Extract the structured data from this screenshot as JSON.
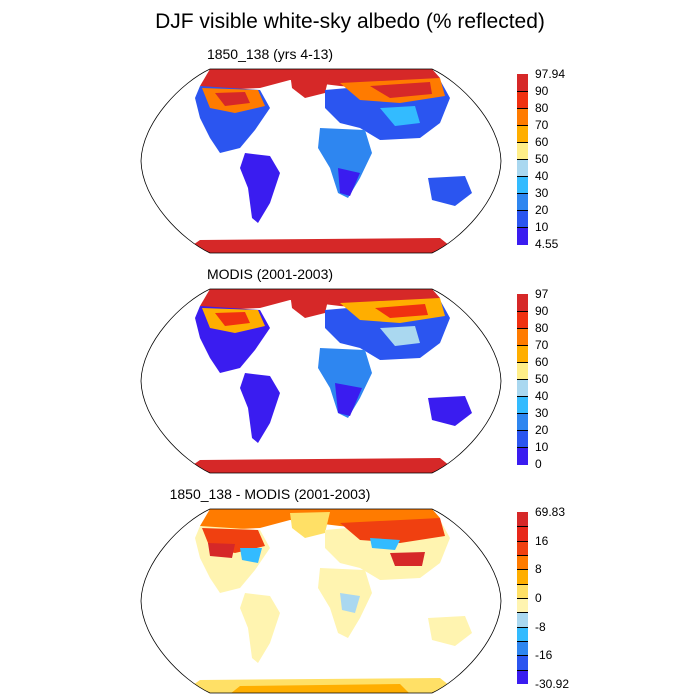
{
  "title": "DJF visible white-sky albedo (% reflected)",
  "panels": [
    {
      "title": "1850_138 (yrs 4-13)",
      "colorbar": {
        "labels": [
          "97.94",
          "90",
          "80",
          "70",
          "60",
          "50",
          "40",
          "30",
          "20",
          "10",
          "4.55"
        ],
        "colors": [
          "#d62828",
          "#f03010",
          "#ff7b00",
          "#ffae00",
          "#ffee88",
          "#aad8f0",
          "#33bbff",
          "#2e86f0",
          "#2b55f0",
          "#3a1cf0"
        ]
      }
    },
    {
      "title": "MODIS (2001-2003)",
      "colorbar": {
        "labels": [
          "97",
          "90",
          "80",
          "70",
          "60",
          "50",
          "40",
          "30",
          "20",
          "10",
          "0"
        ],
        "colors": [
          "#d62828",
          "#f03010",
          "#ff7b00",
          "#ffae00",
          "#ffee88",
          "#aad8f0",
          "#33bbff",
          "#2e86f0",
          "#2b55f0",
          "#3a1cf0"
        ]
      }
    },
    {
      "title": "1850_138 - MODIS (2001-2003)",
      "colorbar": {
        "labels": [
          "69.83",
          "16",
          "8",
          "0",
          "-8",
          "-16",
          "-30.92"
        ],
        "colors": [
          "#d62828",
          "#e8281a",
          "#f04010",
          "#ff7b00",
          "#ffae00",
          "#ffe066",
          "#fff4b0",
          "#aad8f0",
          "#33bbff",
          "#2e86f0",
          "#2b55f0",
          "#3a1cf0"
        ]
      }
    }
  ]
}
